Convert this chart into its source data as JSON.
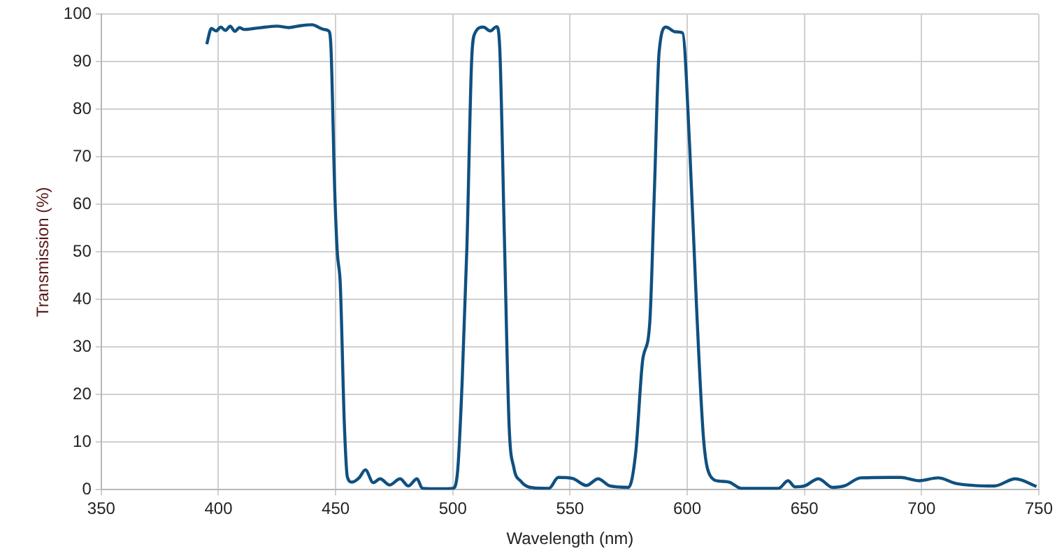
{
  "chart_data": {
    "type": "line",
    "xlabel": "Wavelength (nm)",
    "ylabel": "Transmission (%)",
    "xlim": [
      350,
      750
    ],
    "xticks": [
      350,
      400,
      450,
      500,
      550,
      600,
      650,
      700,
      750
    ],
    "ylim": [
      0,
      100
    ],
    "yticks": [
      0,
      10,
      20,
      30,
      40,
      50,
      60,
      70,
      80,
      90,
      100
    ],
    "grid": true,
    "legend": false,
    "marker": "none",
    "line_style": "solid",
    "series": [
      {
        "color": "#0f5080",
        "x": [
          395,
          397,
          399,
          401,
          403,
          405,
          407,
          409,
          411,
          415,
          420,
          425,
          430,
          435,
          440,
          443,
          445,
          447,
          448,
          449.6,
          450.7,
          452,
          453.7,
          455,
          457,
          460,
          462.7,
          466,
          469,
          473,
          477.5,
          481,
          484.7,
          487,
          495,
          500,
          502,
          504,
          506,
          508,
          509.4,
          513,
          516,
          518.7,
          520,
          522,
          524,
          526,
          529,
          533,
          541,
          545,
          551,
          557,
          562,
          567,
          575,
          578,
          581,
          584,
          586,
          588,
          591,
          595,
          598,
          601,
          604,
          607,
          610,
          614,
          618,
          623,
          639,
          643,
          646,
          650,
          656,
          662,
          667,
          674,
          691,
          699,
          707,
          715,
          731,
          740,
          749
        ],
        "values": [
          93.7,
          97,
          96.5,
          97.3,
          96.6,
          97.5,
          96.4,
          97.2,
          96.8,
          97,
          97.3,
          97.5,
          97.2,
          97.6,
          97.8,
          97.2,
          96.8,
          96.5,
          93,
          63,
          50,
          43,
          14,
          2.7,
          1.6,
          2.5,
          4.2,
          1.5,
          2.3,
          1,
          2.3,
          0.8,
          2.3,
          0.3,
          0.2,
          0.3,
          3.7,
          23,
          51,
          90,
          96,
          97.3,
          96.5,
          97.4,
          93,
          52.9,
          13.6,
          4.7,
          1.8,
          0.5,
          0.3,
          2.6,
          2.4,
          0.9,
          2.3,
          0.8,
          0.5,
          7.7,
          27.3,
          35,
          63,
          92,
          97.3,
          96.3,
          96.1,
          72.6,
          38.2,
          10.5,
          2.8,
          1.8,
          1.6,
          0.3,
          0.3,
          1.9,
          0.6,
          0.8,
          2.3,
          0.5,
          0.8,
          2.5,
          2.6,
          1.9,
          2.5,
          1.3,
          0.8,
          2.3,
          0.7
        ]
      }
    ]
  }
}
